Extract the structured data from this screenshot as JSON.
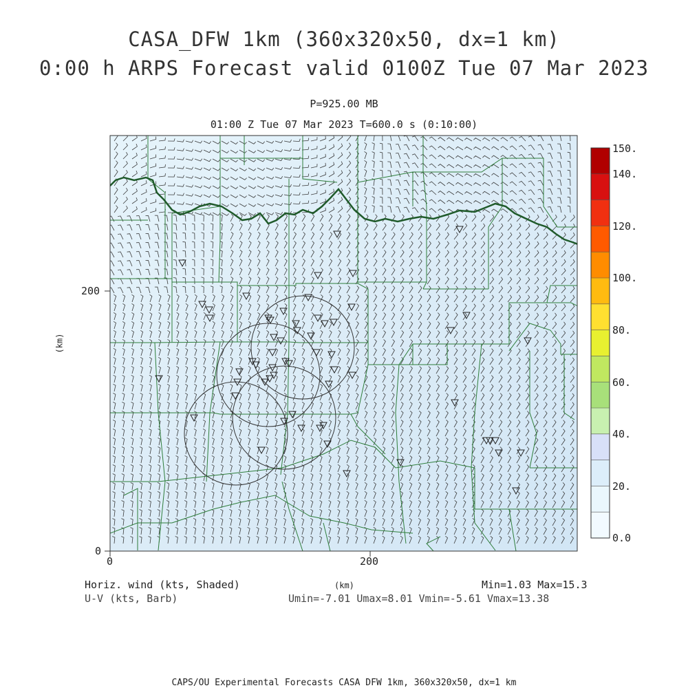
{
  "title": {
    "line1": "CASA_DFW 1km (360x320x50, dx=1 km)",
    "line2": "0:00 h ARPS Forecast valid 0100Z Tue 07 Mar 2023"
  },
  "subtitle": {
    "level": "P=925.00 MB",
    "time": "01:00 Z Tue 07 Mar 2023   T=600.0 s (0:10:00)"
  },
  "axes": {
    "y_label": "(km)",
    "x_label": "(km)",
    "y_ticks": [
      "0",
      "200"
    ],
    "x_ticks": [
      "0",
      "200"
    ]
  },
  "legend": {
    "left_line1": "Horiz. wind (kts, Shaded)",
    "left_line2": "U-V (kts, Barb)",
    "minmax": "Min=1.03 Max=15.3",
    "uv_stats": "Umin=-7.01 Umax=8.01 Vmin=-5.61 Vmax=13.38"
  },
  "colorbar": {
    "labels": [
      "150.",
      "140.",
      "120.",
      "100.",
      "80.",
      "60.",
      "40.",
      "20.",
      "0.0"
    ],
    "colors": [
      "#b00000",
      "#d81010",
      "#f03010",
      "#ff5a00",
      "#ff8c00",
      "#ffbb10",
      "#ffe030",
      "#e8f030",
      "#c0e860",
      "#a8e07a",
      "#c8f0b0",
      "#d8e0f8",
      "#dceefa",
      "#eaf7fd",
      "#f2faff"
    ]
  },
  "map_colors": {
    "background": "#dcedf7",
    "county_lines": "#2e7d3a",
    "river": "#1f5a2a",
    "barbs": "#2a2a2a"
  },
  "footer": "CAPS/OU Experimental Forecasts  CASA DFW 1km, 360x320x50, dx=1 km"
}
